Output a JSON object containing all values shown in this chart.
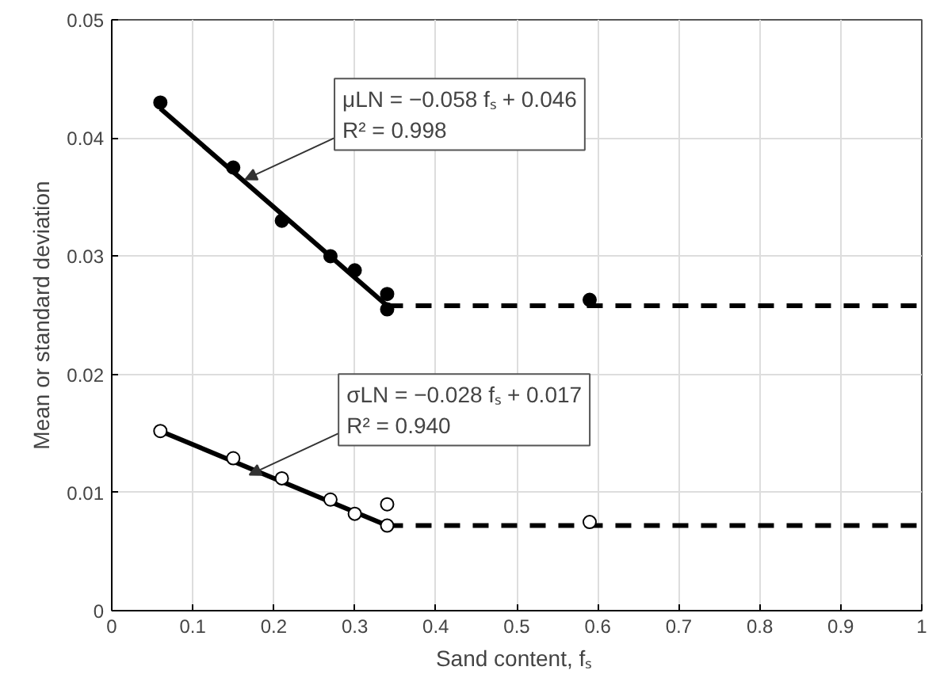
{
  "chart_data": {
    "type": "scatter",
    "xlabel": "Sand content,  fₛ",
    "ylabel": "Mean or standard deviation",
    "xlim": [
      0,
      1
    ],
    "ylim": [
      0,
      0.05
    ],
    "xticks": [
      0,
      0.1,
      0.2,
      0.3,
      0.4,
      0.5,
      0.6,
      0.7,
      0.8,
      0.9,
      1
    ],
    "yticks": [
      0,
      0.01,
      0.02,
      0.03,
      0.04,
      0.05
    ],
    "grid": true,
    "series": [
      {
        "type": "line",
        "color": "#000000",
        "line_style": "solid",
        "marker": "none",
        "x": [
          0.06,
          0.34
        ],
        "values": [
          0.0425,
          0.0258
        ]
      },
      {
        "type": "line",
        "color": "#000000",
        "line_style": "dashed",
        "marker": "none",
        "x": [
          0.34,
          1
        ],
        "values": [
          0.0258,
          0.0258
        ]
      },
      {
        "type": "line",
        "color": "#000000",
        "line_style": "solid",
        "marker": "none",
        "x": [
          0.06,
          0.34
        ],
        "values": [
          0.0152,
          0.0072
        ]
      },
      {
        "type": "line",
        "color": "#000000",
        "line_style": "dashed",
        "marker": "none",
        "x": [
          0.34,
          1
        ],
        "values": [
          0.0072,
          0.0072
        ]
      },
      {
        "color": "#000000",
        "marker": "circle",
        "x": [
          0.06,
          0.15,
          0.21,
          0.27,
          0.3,
          0.34,
          0.34,
          0.59
        ],
        "values": [
          0.043,
          0.0375,
          0.033,
          0.03,
          0.0288,
          0.0268,
          0.0255,
          0.0263
        ]
      },
      {
        "color": "#000000",
        "marker": "circle",
        "x": [
          0.06,
          0.15,
          0.21,
          0.27,
          0.3,
          0.34,
          0.34,
          0.59
        ],
        "values": [
          0.0152,
          0.0129,
          0.0112,
          0.0094,
          0.0082,
          0.009,
          0.0072,
          0.0075
        ]
      }
    ],
    "annotations": [
      {
        "text": "μLN = −0.058 fₛ + 0.046\nR² = 0.998",
        "x": 0.165,
        "y": 0.0365
      },
      {
        "text": "σLN = −0.028 fₛ + 0.017\nR² = 0.940",
        "x": 0.17,
        "y": 0.0115
      }
    ]
  }
}
